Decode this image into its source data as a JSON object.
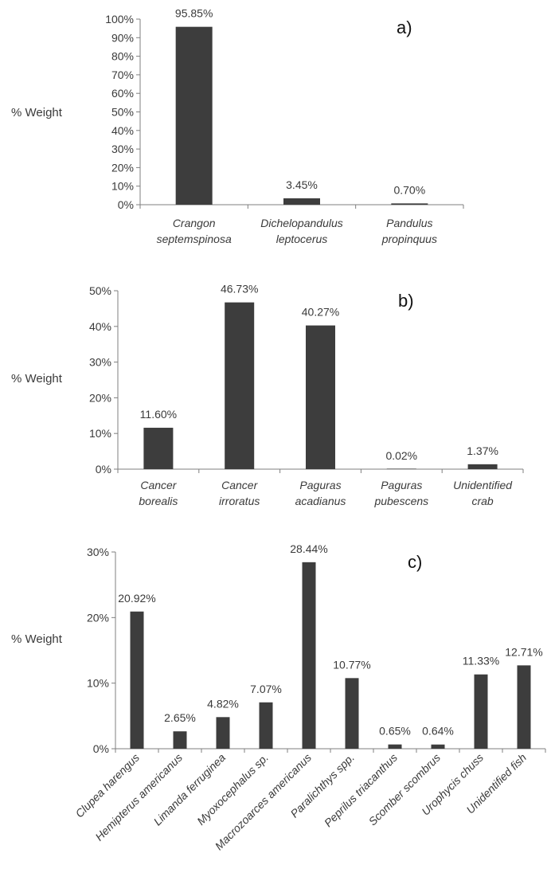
{
  "figure": {
    "bar_color": "#3d3d3d",
    "axis_color": "#7f7f7f",
    "text_color": "#3a3a3a"
  },
  "chart_data": [
    {
      "panel": "a)",
      "type": "bar",
      "ylabel": "% Weight",
      "ylim": [
        0,
        100
      ],
      "yticks": [
        0,
        10,
        20,
        30,
        40,
        50,
        60,
        70,
        80,
        90,
        100
      ],
      "categories": [
        [
          "Crangon",
          "septemspinosa"
        ],
        [
          "Dichelopandulus",
          "leptocerus"
        ],
        [
          "Pandulus",
          "propinquus"
        ]
      ],
      "values": [
        95.85,
        3.45,
        0.7
      ],
      "data_labels": [
        "95.85%",
        "3.45%",
        "0.70%"
      ],
      "grid": false
    },
    {
      "panel": "b)",
      "type": "bar",
      "ylabel": "% Weight",
      "ylim": [
        0,
        50
      ],
      "yticks": [
        0,
        10,
        20,
        30,
        40,
        50
      ],
      "categories": [
        [
          "Cancer",
          "borealis"
        ],
        [
          "Cancer",
          "irroratus"
        ],
        [
          "Paguras",
          "acadianus"
        ],
        [
          "Paguras",
          "pubescens"
        ],
        [
          "Unidentified",
          "crab"
        ]
      ],
      "values": [
        11.6,
        46.73,
        40.27,
        0.02,
        1.37
      ],
      "data_labels": [
        "11.60%",
        "46.73%",
        "40.27%",
        "0.02%",
        "1.37%"
      ],
      "grid": false
    },
    {
      "panel": "c)",
      "type": "bar",
      "ylabel": "% Weight",
      "ylim": [
        0,
        30
      ],
      "yticks": [
        0,
        10,
        20,
        30
      ],
      "categories": [
        [
          "Clupea harengus"
        ],
        [
          "Hemipterus americanus"
        ],
        [
          "Limanda ferruginea"
        ],
        [
          "Myoxocephalus sp."
        ],
        [
          "Macrozoarces americanus"
        ],
        [
          "Paralichthys spp."
        ],
        [
          "Peprilus triacanthus"
        ],
        [
          "Scomber scombrus"
        ],
        [
          "Urophycis chuss"
        ],
        [
          "Unidentified fish"
        ]
      ],
      "values": [
        20.92,
        2.65,
        4.82,
        7.07,
        28.44,
        10.77,
        0.65,
        0.64,
        11.33,
        12.71
      ],
      "data_labels": [
        "20.92%",
        "2.65%",
        "4.82%",
        "7.07%",
        "28.44%",
        "10.77%",
        "0.65%",
        "0.64%",
        "11.33%",
        "12.71%"
      ],
      "rotated_categories": true,
      "grid": false
    }
  ]
}
